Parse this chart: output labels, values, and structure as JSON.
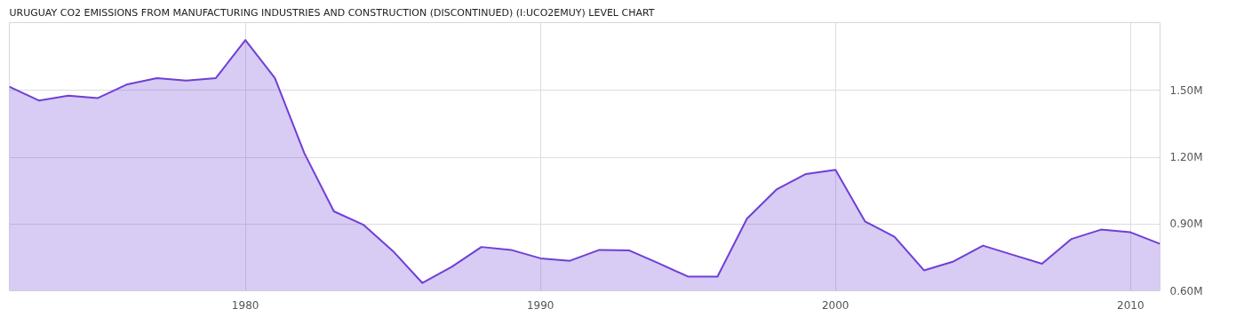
{
  "chart_data": {
    "type": "area",
    "title": "URUGUAY CO2 EMISSIONS FROM MANUFACTURING INDUSTRIES AND CONSTRUCTION (DISCONTINUED) (I:UCO2EMUY) LEVEL CHART",
    "x": [
      1972,
      1973,
      1974,
      1975,
      1976,
      1977,
      1978,
      1979,
      1980,
      1981,
      1982,
      1983,
      1984,
      1985,
      1986,
      1987,
      1988,
      1989,
      1990,
      1991,
      1992,
      1993,
      1994,
      1995,
      1996,
      1997,
      1998,
      1999,
      2000,
      2001,
      2002,
      2003,
      2004,
      2005,
      2006,
      2007,
      2008,
      2009,
      2010,
      2011
    ],
    "series": [
      {
        "color": "#6f3fd6",
        "values": [
          1517000,
          1455000,
          1477000,
          1466000,
          1528000,
          1556000,
          1545000,
          1556000,
          1727000,
          1556000,
          1218000,
          957000,
          897000,
          779000,
          635000,
          708000,
          797000,
          784000,
          746000,
          735000,
          784000,
          782000,
          724000,
          664000,
          664000,
          924000,
          1055000,
          1125000,
          1144000,
          912000,
          843000,
          692000,
          732000,
          803000,
          762000,
          722000,
          833000,
          875000,
          863000,
          811000
        ]
      }
    ],
    "xlim": [
      1972,
      2011
    ],
    "xticks": [
      1980,
      1990,
      2000,
      2010
    ],
    "ylim": [
      600000,
      1805000
    ],
    "yticks": [
      {
        "value": 600000,
        "label": "0.60M"
      },
      {
        "value": 900000,
        "label": "0.90M"
      },
      {
        "value": 1200000,
        "label": "1.20M"
      },
      {
        "value": 1500000,
        "label": "1.50M"
      }
    ],
    "grid": true
  }
}
